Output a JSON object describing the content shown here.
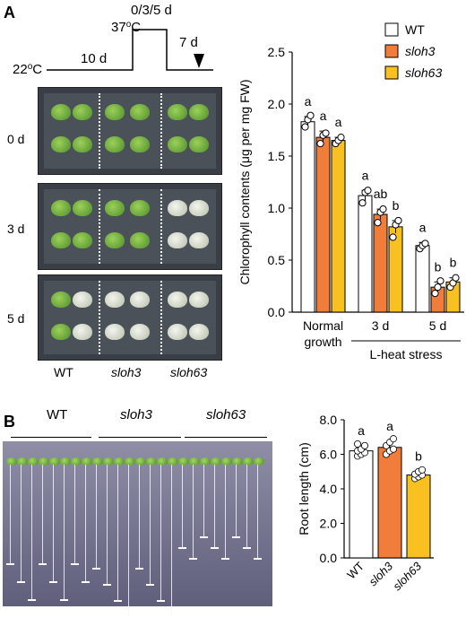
{
  "panel_a_label": "A",
  "panel_b_label": "B",
  "timeline": {
    "start_temp": "22",
    "start_temp_sup": "o",
    "start_temp_unit": "C",
    "phase1": "10 d",
    "heat_temp": "37",
    "heat_temp_sup": "o",
    "heat_temp_unit": "C",
    "heat_duration": "0/3/5 d",
    "recovery": "7 d"
  },
  "plate_rows": [
    "0 d",
    "3 d",
    "5 d"
  ],
  "genotypes": [
    "WT",
    "sloh3",
    "sloh63"
  ],
  "chart_data": [
    {
      "type": "bar",
      "ylabel": "Chlorophyll contents (μg per mg FW)",
      "ylim": [
        0,
        2.5
      ],
      "yticks": [
        "0.0",
        "0.5",
        "1.0",
        "1.5",
        "2.0",
        "2.5"
      ],
      "groups": [
        "Normal growth",
        "3 d",
        "5 d"
      ],
      "group_axis_lines": [
        [
          "Normal",
          "growth"
        ],
        [
          "3 d"
        ],
        [
          "5 d"
        ]
      ],
      "bracket_label": "L-heat stress",
      "series": [
        {
          "name": "WT",
          "color": "#ffffff",
          "values": [
            1.83,
            1.12,
            0.64
          ],
          "errors": [
            0.05,
            0.05,
            0.03
          ],
          "letters": [
            "a",
            "a",
            "a"
          ],
          "points": [
            [
              1.78,
              1.85,
              1.89
            ],
            [
              1.05,
              1.15,
              1.17
            ],
            [
              0.61,
              0.64,
              0.66
            ]
          ]
        },
        {
          "name": "sloh3",
          "color": "#f07d3a",
          "values": [
            1.68,
            0.94,
            0.24
          ],
          "errors": [
            0.06,
            0.05,
            0.05
          ],
          "letters": [
            "a",
            "ab",
            "b"
          ],
          "points": [
            [
              1.62,
              1.7,
              1.72
            ],
            [
              0.86,
              0.96,
              0.99
            ],
            [
              0.18,
              0.24,
              0.3
            ]
          ]
        },
        {
          "name": "sloh63",
          "color": "#f8c020",
          "values": [
            1.65,
            0.82,
            0.29
          ],
          "errors": [
            0.03,
            0.06,
            0.04
          ],
          "letters": [
            "a",
            "b",
            "b"
          ],
          "points": [
            [
              1.62,
              1.65,
              1.68
            ],
            [
              0.72,
              0.84,
              0.88
            ],
            [
              0.24,
              0.28,
              0.33
            ]
          ]
        }
      ]
    },
    {
      "type": "bar",
      "ylabel": "Root length (cm)",
      "ylim": [
        0,
        8
      ],
      "yticks": [
        "0.0",
        "2.0",
        "4.0",
        "6.0",
        "8.0"
      ],
      "categories": [
        "WT",
        "sloh3",
        "sloh63"
      ],
      "colors": [
        "#ffffff",
        "#f07d3a",
        "#f8c020"
      ],
      "values": [
        6.2,
        6.4,
        4.8
      ],
      "errors": [
        0.2,
        0.25,
        0.1
      ],
      "letters": [
        "a",
        "a",
        "b"
      ],
      "points": [
        [
          5.9,
          6.0,
          6.1,
          6.2,
          6.3,
          6.5,
          6.6
        ],
        [
          6.0,
          6.2,
          6.3,
          6.5,
          6.7,
          6.9
        ],
        [
          4.6,
          4.7,
          4.8,
          4.85,
          5.0,
          5.1
        ]
      ]
    }
  ]
}
